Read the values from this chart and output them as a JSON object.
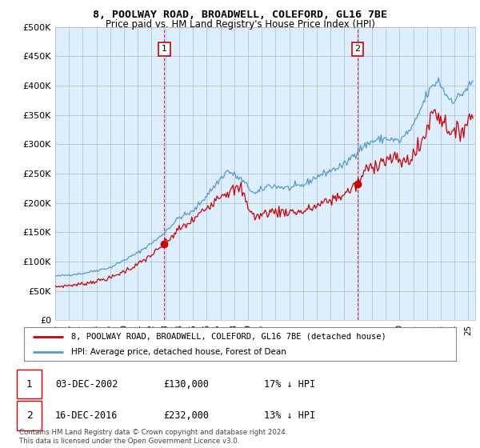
{
  "title": "8, POOLWAY ROAD, BROADWELL, COLEFORD, GL16 7BE",
  "subtitle": "Price paid vs. HM Land Registry's House Price Index (HPI)",
  "ylabel_ticks": [
    "£0",
    "£50K",
    "£100K",
    "£150K",
    "£200K",
    "£250K",
    "£300K",
    "£350K",
    "£400K",
    "£450K",
    "£500K"
  ],
  "ytick_values": [
    0,
    50000,
    100000,
    150000,
    200000,
    250000,
    300000,
    350000,
    400000,
    450000,
    500000
  ],
  "ylim": [
    0,
    500000
  ],
  "xlim_start": 1995.0,
  "xlim_end": 2025.5,
  "hpi_color": "#5599cc",
  "price_color": "#cc0000",
  "vline_color": "#cc0000",
  "chart_bg_color": "#ddeeff",
  "purchase1_date": 2002.92,
  "purchase1_price": 130000,
  "purchase2_date": 2016.96,
  "purchase2_price": 232000,
  "legend_entry1": "8, POOLWAY ROAD, BROADWELL, COLEFORD, GL16 7BE (detached house)",
  "legend_entry2": "HPI: Average price, detached house, Forest of Dean",
  "annotation1_label": "1",
  "annotation1_date": "03-DEC-2002",
  "annotation1_price": "£130,000",
  "annotation1_hpi": "17% ↓ HPI",
  "annotation2_label": "2",
  "annotation2_date": "16-DEC-2016",
  "annotation2_price": "£232,000",
  "annotation2_hpi": "13% ↓ HPI",
  "footer": "Contains HM Land Registry data © Crown copyright and database right 2024.\nThis data is licensed under the Open Government Licence v3.0.",
  "background_color": "#ffffff",
  "grid_color": "#aabbcc"
}
